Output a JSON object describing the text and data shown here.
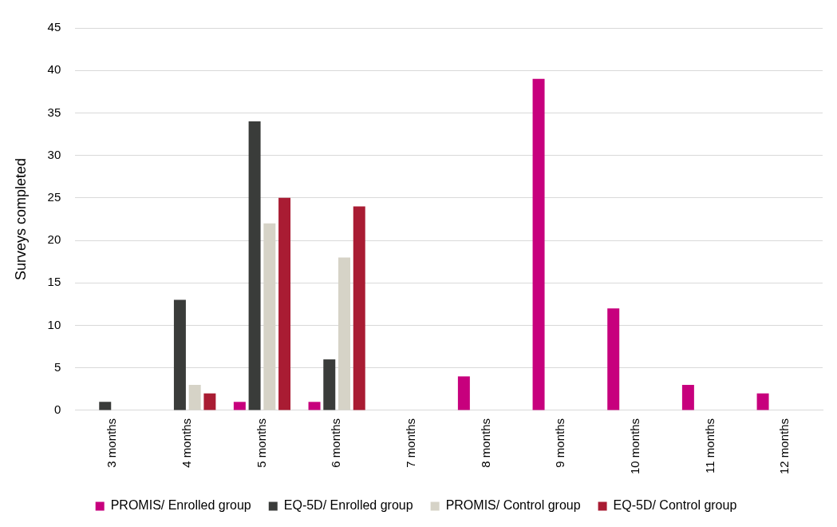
{
  "chart_data": {
    "type": "bar",
    "ylabel": "Surveys completed",
    "categories": [
      "3 months",
      "4 months",
      "5 months",
      "6 months",
      "7 months",
      "8 months",
      "9 months",
      "10 months",
      "11 months",
      "12 months"
    ],
    "series": [
      {
        "name": "PROMIS/ Enrolled group",
        "color": "#c7007d",
        "values": [
          0,
          0,
          1,
          1,
          0,
          4,
          39,
          12,
          3,
          2
        ]
      },
      {
        "name": "EQ-5D/ Enrolled group",
        "color": "#3a3c3a",
        "values": [
          1,
          13,
          34,
          6,
          0,
          0,
          0,
          0,
          0,
          0
        ]
      },
      {
        "name": "PROMIS/ Control group",
        "color": "#d6d3c7",
        "values": [
          0,
          3,
          22,
          18,
          0,
          0,
          0,
          0,
          0,
          0
        ]
      },
      {
        "name": "EQ-5D/ Control group",
        "color": "#a91c33",
        "values": [
          0,
          2,
          25,
          24,
          0,
          0,
          0,
          0,
          0,
          0
        ]
      }
    ],
    "ylim": [
      0,
      45
    ],
    "yticks": [
      0,
      5,
      10,
      15,
      20,
      25,
      30,
      35,
      40,
      45
    ],
    "grid": "y",
    "legend": "bottom"
  }
}
